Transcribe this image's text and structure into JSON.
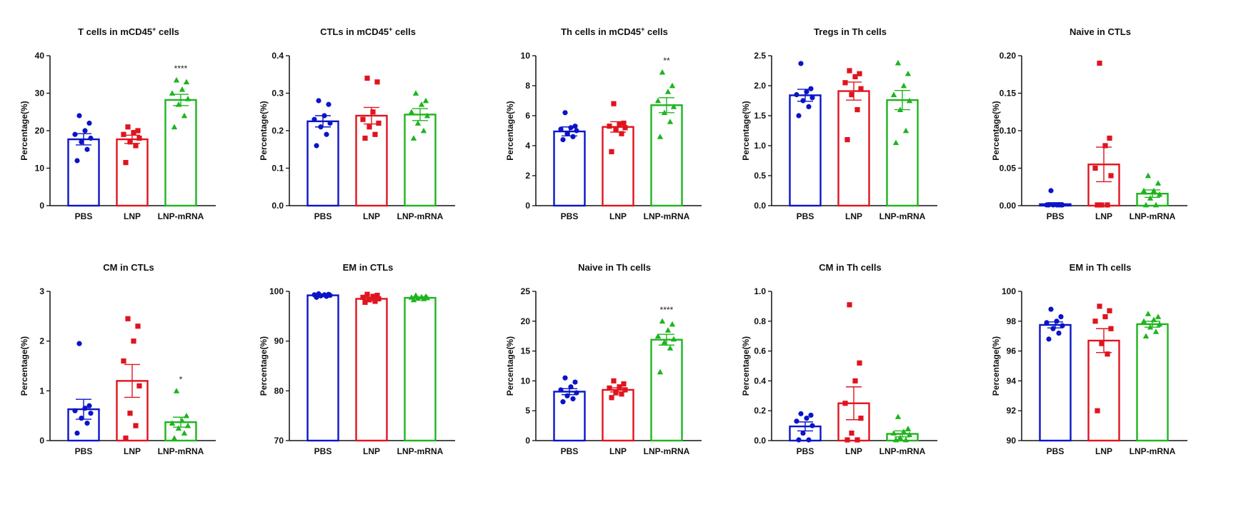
{
  "chart_data": [
    {
      "type": "bar",
      "title": "T cells  in mCD45+ cells",
      "title_superscript": "+",
      "ylabel": "Percentage(%)",
      "categories": [
        "PBS",
        "LNP",
        "LNP-mRNA"
      ],
      "ylim": [
        0,
        40
      ],
      "yticks": [
        "0",
        "10",
        "20",
        "30",
        "40"
      ],
      "colors": [
        "#0a14c8",
        "#e0141e",
        "#1eb41e"
      ],
      "markers": [
        "circle",
        "square",
        "triangle"
      ],
      "significance": [
        "",
        "",
        "****"
      ],
      "series": [
        {
          "mean": 17.7,
          "sem": 1.5,
          "points": [
            12.0,
            15.0,
            17.0,
            18.0,
            19.0,
            20.0,
            22.0,
            24.0
          ]
        },
        {
          "mean": 17.7,
          "sem": 1.1,
          "points": [
            11.5,
            16.0,
            17.0,
            18.0,
            19.0,
            19.5,
            20.0,
            21.0
          ]
        },
        {
          "mean": 28.2,
          "sem": 1.5,
          "points": [
            21.0,
            24.0,
            27.0,
            28.5,
            30.0,
            31.0,
            33.0,
            33.5
          ]
        }
      ]
    },
    {
      "type": "bar",
      "title": "CTLs  in mCD45+ cells",
      "title_superscript": "+",
      "ylabel": "Percentage(%)",
      "categories": [
        "PBS",
        "LNP",
        "LNP-mRNA"
      ],
      "ylim": [
        0,
        0.4
      ],
      "yticks": [
        "0.0",
        "0.1",
        "0.2",
        "0.3",
        "0.4"
      ],
      "colors": [
        "#0a14c8",
        "#e0141e",
        "#1eb41e"
      ],
      "markers": [
        "circle",
        "square",
        "triangle"
      ],
      "significance": [
        "",
        "",
        ""
      ],
      "series": [
        {
          "mean": 0.225,
          "sem": 0.015,
          "points": [
            0.16,
            0.19,
            0.21,
            0.22,
            0.23,
            0.24,
            0.27,
            0.28
          ]
        },
        {
          "mean": 0.24,
          "sem": 0.022,
          "points": [
            0.18,
            0.19,
            0.21,
            0.22,
            0.23,
            0.25,
            0.33,
            0.34
          ]
        },
        {
          "mean": 0.243,
          "sem": 0.016,
          "points": [
            0.18,
            0.2,
            0.22,
            0.24,
            0.25,
            0.27,
            0.28,
            0.3
          ]
        }
      ]
    },
    {
      "type": "bar",
      "title": "Th cells in mCD45+ cells",
      "title_superscript": "+",
      "ylabel": "Percentage(%)",
      "categories": [
        "PBS",
        "LNP",
        "LNP-mRNA"
      ],
      "ylim": [
        0,
        10
      ],
      "yticks": [
        "0",
        "2",
        "4",
        "6",
        "8",
        "10"
      ],
      "colors": [
        "#0a14c8",
        "#e0141e",
        "#1eb41e"
      ],
      "markers": [
        "circle",
        "square",
        "triangle"
      ],
      "significance": [
        "",
        "",
        "**"
      ],
      "series": [
        {
          "mean": 4.95,
          "sem": 0.3,
          "points": [
            4.4,
            4.6,
            4.8,
            5.0,
            5.1,
            5.2,
            5.3,
            6.2
          ]
        },
        {
          "mean": 5.25,
          "sem": 0.35,
          "points": [
            3.6,
            4.8,
            5.1,
            5.2,
            5.3,
            5.4,
            5.5,
            6.8
          ]
        },
        {
          "mean": 6.7,
          "sem": 0.5,
          "points": [
            4.6,
            5.6,
            6.2,
            6.6,
            7.0,
            7.6,
            8.0,
            8.9
          ]
        }
      ]
    },
    {
      "type": "bar",
      "title": "Tregs in Th cells",
      "ylabel": "Percentage(%)",
      "categories": [
        "PBS",
        "LNP",
        "LNP-mRNA"
      ],
      "ylim": [
        0,
        2.5
      ],
      "yticks": [
        "0.0",
        "0.5",
        "1.0",
        "1.5",
        "2.0",
        "2.5"
      ],
      "colors": [
        "#0a14c8",
        "#e0141e",
        "#1eb41e"
      ],
      "markers": [
        "circle",
        "square",
        "triangle"
      ],
      "significance": [
        "",
        "",
        ""
      ],
      "series": [
        {
          "mean": 1.84,
          "sem": 0.1,
          "points": [
            1.5,
            1.65,
            1.75,
            1.8,
            1.85,
            1.9,
            1.95,
            2.37
          ]
        },
        {
          "mean": 1.91,
          "sem": 0.15,
          "points": [
            1.1,
            1.6,
            1.85,
            1.95,
            2.05,
            2.15,
            2.2,
            2.25
          ]
        },
        {
          "mean": 1.76,
          "sem": 0.16,
          "points": [
            1.05,
            1.25,
            1.6,
            1.75,
            1.85,
            2.0,
            2.2,
            2.38
          ]
        }
      ]
    },
    {
      "type": "bar",
      "title": "Naive in CTLs",
      "ylabel": "Percentage(%)",
      "categories": [
        "PBS",
        "LNP",
        "LNP-mRNA"
      ],
      "ylim": [
        0,
        0.2
      ],
      "yticks": [
        "0.00",
        "0.05",
        "0.10",
        "0.15",
        "0.20"
      ],
      "colors": [
        "#0a14c8",
        "#e0141e",
        "#1eb41e"
      ],
      "markers": [
        "circle",
        "square",
        "triangle"
      ],
      "significance": [
        "",
        "",
        ""
      ],
      "series": [
        {
          "mean": 0.002,
          "sem": 0.002,
          "points": [
            0.0,
            0.0,
            0.0,
            0.0,
            0.0,
            0.0,
            0.0,
            0.02
          ]
        },
        {
          "mean": 0.055,
          "sem": 0.023,
          "points": [
            0.0,
            0.0,
            0.0,
            0.04,
            0.05,
            0.08,
            0.09,
            0.19
          ]
        },
        {
          "mean": 0.016,
          "sem": 0.005,
          "points": [
            0.0,
            0.0,
            0.01,
            0.015,
            0.02,
            0.02,
            0.03,
            0.04
          ]
        }
      ]
    },
    {
      "type": "bar",
      "title": "CM in CTLs",
      "ylabel": "Percentage(%)",
      "categories": [
        "PBS",
        "LNP",
        "LNP-mRNA"
      ],
      "ylim": [
        0,
        3
      ],
      "yticks": [
        "0",
        "1",
        "2",
        "3"
      ],
      "colors": [
        "#0a14c8",
        "#e0141e",
        "#1eb41e"
      ],
      "markers": [
        "circle",
        "square",
        "triangle"
      ],
      "significance": [
        "",
        "",
        "*"
      ],
      "series": [
        {
          "mean": 0.63,
          "sem": 0.2,
          "points": [
            0.15,
            0.35,
            0.45,
            0.55,
            0.6,
            0.65,
            0.7,
            1.95
          ]
        },
        {
          "mean": 1.2,
          "sem": 0.33,
          "points": [
            0.05,
            0.3,
            0.55,
            1.1,
            1.6,
            2.0,
            2.3,
            2.45
          ]
        },
        {
          "mean": 0.37,
          "sem": 0.1,
          "points": [
            0.05,
            0.15,
            0.25,
            0.3,
            0.35,
            0.4,
            0.5,
            1.0
          ]
        }
      ]
    },
    {
      "type": "bar",
      "title": "EM in CTLs",
      "ylabel": "Percentage(%)",
      "categories": [
        "PBS",
        "LNP",
        "LNP-mRNA"
      ],
      "ylim": [
        70,
        100
      ],
      "yticks": [
        "70",
        "80",
        "90",
        "100"
      ],
      "colors": [
        "#0a14c8",
        "#e0141e",
        "#1eb41e"
      ],
      "markers": [
        "circle",
        "square",
        "triangle"
      ],
      "significance": [
        "",
        "",
        ""
      ],
      "series": [
        {
          "mean": 99.2,
          "sem": 0.2,
          "points": [
            98.8,
            99.0,
            99.1,
            99.2,
            99.3,
            99.3,
            99.4,
            99.5
          ]
        },
        {
          "mean": 98.5,
          "sem": 0.3,
          "points": [
            97.8,
            98.0,
            98.3,
            98.5,
            98.8,
            99.0,
            99.2,
            99.4
          ]
        },
        {
          "mean": 98.7,
          "sem": 0.15,
          "points": [
            98.3,
            98.5,
            98.6,
            98.7,
            98.8,
            98.9,
            99.0,
            99.2
          ]
        }
      ]
    },
    {
      "type": "bar",
      "title": "Naive in Th cells",
      "ylabel": "Percentage(%)",
      "categories": [
        "PBS",
        "LNP",
        "LNP-mRNA"
      ],
      "ylim": [
        0,
        25
      ],
      "yticks": [
        "0",
        "5",
        "10",
        "15",
        "20",
        "25"
      ],
      "colors": [
        "#0a14c8",
        "#e0141e",
        "#1eb41e"
      ],
      "markers": [
        "circle",
        "square",
        "triangle"
      ],
      "significance": [
        "",
        "",
        "****"
      ],
      "series": [
        {
          "mean": 8.2,
          "sem": 0.5,
          "points": [
            6.5,
            7.0,
            7.5,
            8.0,
            8.5,
            9.0,
            9.8,
            10.5
          ]
        },
        {
          "mean": 8.5,
          "sem": 0.35,
          "points": [
            7.2,
            7.8,
            8.0,
            8.5,
            8.8,
            9.0,
            9.5,
            10.0
          ]
        },
        {
          "mean": 16.9,
          "sem": 0.9,
          "points": [
            11.5,
            15.5,
            16.5,
            17.0,
            17.5,
            18.5,
            19.5,
            20.0
          ]
        }
      ]
    },
    {
      "type": "bar",
      "title": "CM in Th cells",
      "ylabel": "Percentage(%)",
      "categories": [
        "PBS",
        "LNP",
        "LNP-mRNA"
      ],
      "ylim": [
        0,
        1.0
      ],
      "yticks": [
        "0.0",
        "0.2",
        "0.4",
        "0.6",
        "0.8",
        "1.0"
      ],
      "colors": [
        "#0a14c8",
        "#e0141e",
        "#1eb41e"
      ],
      "markers": [
        "circle",
        "square",
        "triangle"
      ],
      "significance": [
        "",
        "",
        ""
      ],
      "series": [
        {
          "mean": 0.095,
          "sem": 0.03,
          "points": [
            0.0,
            0.0,
            0.05,
            0.1,
            0.13,
            0.15,
            0.17,
            0.18
          ]
        },
        {
          "mean": 0.25,
          "sem": 0.11,
          "points": [
            0.0,
            0.0,
            0.05,
            0.15,
            0.25,
            0.4,
            0.52,
            0.91
          ]
        },
        {
          "mean": 0.045,
          "sem": 0.02,
          "points": [
            0.0,
            0.0,
            0.02,
            0.04,
            0.05,
            0.06,
            0.08,
            0.16
          ]
        }
      ]
    },
    {
      "type": "bar",
      "title": "EM in Th cells",
      "ylabel": "Percentage(%)",
      "categories": [
        "PBS",
        "LNP",
        "LNP-mRNA"
      ],
      "ylim": [
        90,
        100
      ],
      "yticks": [
        "90",
        "92",
        "94",
        "96",
        "98",
        "100"
      ],
      "colors": [
        "#0a14c8",
        "#e0141e",
        "#1eb41e"
      ],
      "markers": [
        "circle",
        "square",
        "triangle"
      ],
      "significance": [
        "",
        "",
        ""
      ],
      "series": [
        {
          "mean": 97.75,
          "sem": 0.2,
          "points": [
            96.8,
            97.2,
            97.5,
            97.7,
            97.9,
            98.0,
            98.3,
            98.8
          ]
        },
        {
          "mean": 96.7,
          "sem": 0.8,
          "points": [
            92.0,
            95.8,
            96.5,
            97.5,
            98.0,
            98.3,
            98.7,
            99.0
          ]
        },
        {
          "mean": 97.8,
          "sem": 0.2,
          "points": [
            97.0,
            97.3,
            97.6,
            97.8,
            98.0,
            98.1,
            98.3,
            98.5
          ]
        }
      ]
    }
  ]
}
